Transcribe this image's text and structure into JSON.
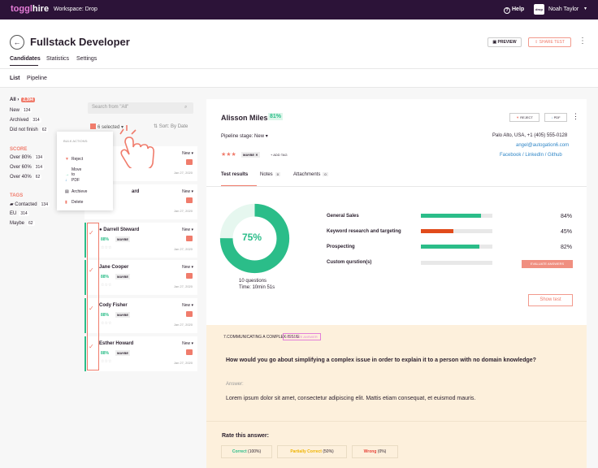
{
  "topbar": {
    "logo_a": "toggl",
    "logo_b": "hire",
    "workspace": "Workspace: Drop",
    "help": "Help",
    "avatar": "drop",
    "user": "Noah Taylor"
  },
  "header": {
    "title": "Fullstack Developer",
    "preview": "PREVIEW",
    "share": "SHARE TEST",
    "tabs": [
      "Candidates",
      "Statistics",
      "Settings"
    ],
    "subtabs": [
      "List",
      "Pipeline"
    ]
  },
  "sidebar": {
    "filters": [
      {
        "label": "All",
        "count": "2,394"
      },
      {
        "label": "New",
        "count": "134"
      },
      {
        "label": "Archived",
        "count": "314"
      },
      {
        "label": "Did not finish",
        "count": "62"
      }
    ],
    "score_title": "SCORE",
    "score": [
      {
        "label": "Over 80%",
        "count": "134"
      },
      {
        "label": "Over 60%",
        "count": "314"
      },
      {
        "label": "Over 40%",
        "count": "62"
      }
    ],
    "tags_title": "TAGS",
    "tags": [
      {
        "label": "Contacted",
        "count": "134"
      },
      {
        "label": "EU",
        "count": "314"
      },
      {
        "label": "Maybe",
        "count": "62"
      }
    ]
  },
  "list": {
    "search_placeholder": "Search from \"All\"",
    "selected": "6 selected",
    "sort": "Sort: By Date",
    "cards": [
      {
        "name": "",
        "status": "New",
        "pct": "",
        "tag": "",
        "date": "Jan 27, 2020"
      },
      {
        "name": "ard",
        "status": "New",
        "pct": "",
        "tag": "",
        "date": "Jan 27, 2020"
      },
      {
        "name": "Darrell Steward",
        "status": "New",
        "pct": "88%",
        "tag": "MAYBE",
        "date": "Jan 27, 2020"
      },
      {
        "name": "Jane Cooper",
        "status": "New",
        "pct": "88%",
        "tag": "MAYBE",
        "date": "Jan 27, 2020"
      },
      {
        "name": "Cody Fisher",
        "status": "New",
        "pct": "88%",
        "tag": "MAYBE",
        "date": "Jan 27, 2020"
      },
      {
        "name": "Esther Howard",
        "status": "New",
        "pct": "88%",
        "tag": "MAYBE",
        "date": "Jan 27, 2020"
      }
    ]
  },
  "bulk": {
    "title": "BULK ACTIONS:",
    "items": [
      "Reject",
      "Move to",
      "PDF",
      "Archieve",
      "Delete"
    ]
  },
  "candidate": {
    "name": "Alisson Miles",
    "score": "81%",
    "reject": "REJECT",
    "pdf": "PDF",
    "pipeline": "Pipeline stage: New",
    "location": "Palo Alto, USA, +1 (405) 555-0128",
    "email": "angel@autogation6.com",
    "social": "Facebook  /  LinkedIn  /  Github",
    "stars": "★★★",
    "tag": "MAYBE",
    "addtag": "+ ADD TAG",
    "tabs": [
      {
        "label": "Test results",
        "count": ""
      },
      {
        "label": "Notes",
        "count": "0"
      },
      {
        "label": "Attachments",
        "count": "0"
      }
    ],
    "overall": "75%",
    "overall_value": 75,
    "questions": "10 questions",
    "time": "Time: 10min 51s",
    "skills": [
      {
        "name": "General Sales",
        "pct": "84%",
        "value": 84,
        "color": "#2bbd89"
      },
      {
        "name": "Keyword research and targeting",
        "pct": "45%",
        "value": 45,
        "color": "#e14b1b"
      },
      {
        "name": "Prospecting",
        "pct": "82%",
        "value": 82,
        "color": "#2bbd89"
      },
      {
        "name": "Custom qurstion(s)",
        "pct": "",
        "value": 0,
        "color": "#2bbd89"
      }
    ],
    "evaluate": "EVALUATE ANSWERS",
    "showtest": "Show test"
  },
  "answer": {
    "qnum": "7.COMMUNICATING A COMPLEX ISSUE",
    "eval": "EVALUATE ANSWER",
    "question": "How would you go about simplifying a complex issue in order to explain it to a person with no domain knowledge?",
    "label": "Answer:",
    "text": "Lorem ipsum dolor sit amet, consectetur adipiscing elit. Mattis etiam consequat, et euismod mauris.",
    "rate": "Rate this answer:",
    "ratings": [
      {
        "label": "Correct",
        "pct": "(100%)",
        "color": "#2bbd89"
      },
      {
        "label": "Partially Correct",
        "pct": "(50%)",
        "color": "#f0b400"
      },
      {
        "label": "Wrong",
        "pct": "(0%)",
        "color": "#e8463b"
      }
    ]
  }
}
